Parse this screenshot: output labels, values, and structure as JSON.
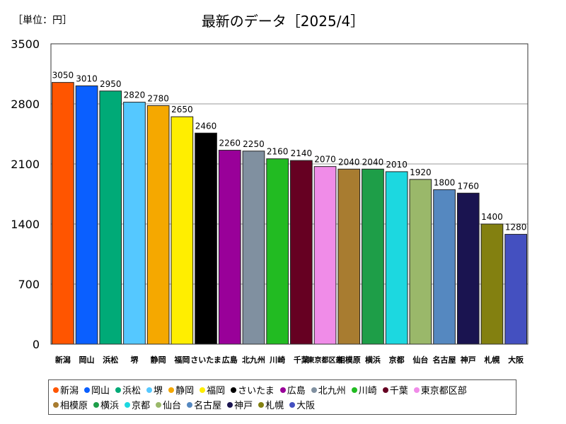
{
  "unit_label": "［単位：円］",
  "title": "最新のデータ［2025/4］",
  "chart_data": {
    "type": "bar",
    "title": "最新のデータ［2025/4］",
    "ylabel": "［単位：円］",
    "xlabel": "",
    "ylim": [
      0,
      3500
    ],
    "yticks": [
      0,
      700,
      1400,
      2100,
      2800,
      3500
    ],
    "grid": true,
    "legend_position": "bottom",
    "categories": [
      "新潟",
      "岡山",
      "浜松",
      "堺",
      "静岡",
      "福岡",
      "さいたま",
      "広島",
      "北九州",
      "川崎",
      "千葉",
      "東京都区部",
      "相模原",
      "横浜",
      "京都",
      "仙台",
      "名古屋",
      "神戸",
      "札幌",
      "大阪"
    ],
    "values": [
      3050,
      3010,
      2950,
      2820,
      2780,
      2650,
      2460,
      2260,
      2250,
      2160,
      2140,
      2070,
      2040,
      2040,
      2010,
      1920,
      1800,
      1760,
      1400,
      1280
    ],
    "colors": [
      "#ff5500",
      "#0a5fff",
      "#00aa77",
      "#55c8ff",
      "#f5a800",
      "#ffee00",
      "#000000",
      "#990099",
      "#8090a0",
      "#22bb22",
      "#660022",
      "#f08ce8",
      "#a87c30",
      "#1e9e48",
      "#1cd8e0",
      "#9ab86a",
      "#5588c0",
      "#1a1450",
      "#838010",
      "#4450c0"
    ]
  }
}
